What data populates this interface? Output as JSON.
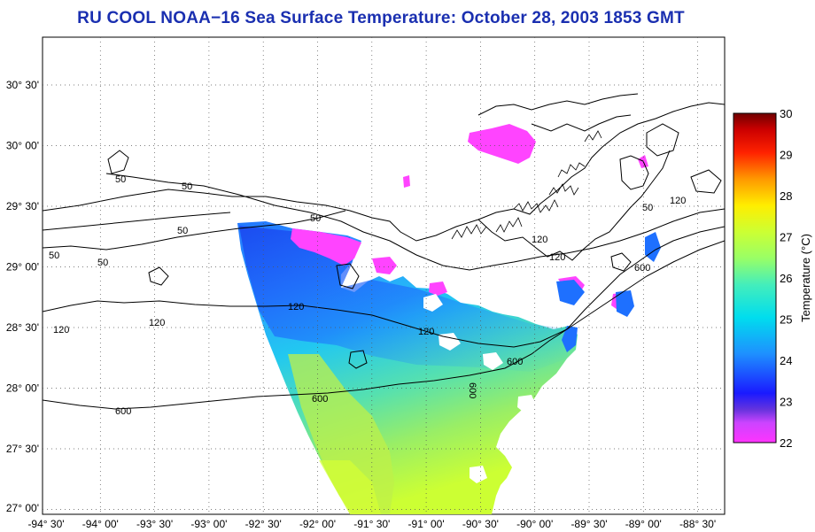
{
  "title": "RU COOL  NOAA−16  Sea Surface Temperature:  October 28, 2003 1853 GMT",
  "map": {
    "lon_labels": [
      "-94° 30'",
      "-94° 00'",
      "-93° 30'",
      "-93° 00'",
      "-92° 30'",
      "-92° 00'",
      "-91° 30'",
      "-91° 00'",
      "-90° 30'",
      "-90° 00'",
      "-89° 30'",
      "-89° 00'",
      "-88° 30'"
    ],
    "lat_labels": [
      "30° 30'",
      "30° 00'",
      "29° 30'",
      "29° 00'",
      "28° 30'",
      "28° 00'",
      "27° 30'",
      "27° 00'"
    ],
    "lon_range": [
      -94.5,
      -88.25
    ],
    "lat_range": [
      26.95,
      30.85
    ],
    "grid": "dotted",
    "bathymetry_contour_labels": [
      "50",
      "50",
      "50",
      "50",
      "50",
      "50",
      "50",
      "120",
      "120",
      "120",
      "120",
      "120",
      "120",
      "120",
      "600",
      "600",
      "600",
      "600",
      "600"
    ]
  },
  "colorbar": {
    "title": "Temperature (°C)",
    "tick_labels": [
      "30",
      "29",
      "28",
      "27",
      "26",
      "25",
      "24",
      "23",
      "22"
    ],
    "range": [
      22,
      30
    ],
    "colors": [
      "#ff33ff",
      "#8a2be2",
      "#1a1aff",
      "#1e90ff",
      "#00ddee",
      "#66ff88",
      "#ccff33",
      "#ffee00",
      "#ff8800",
      "#ff2200",
      "#b00000",
      "#700000"
    ]
  },
  "palette": {
    "title_color": "#1a2fb0",
    "cloud_mask": "#ff44ff",
    "land": "#ffffff"
  }
}
